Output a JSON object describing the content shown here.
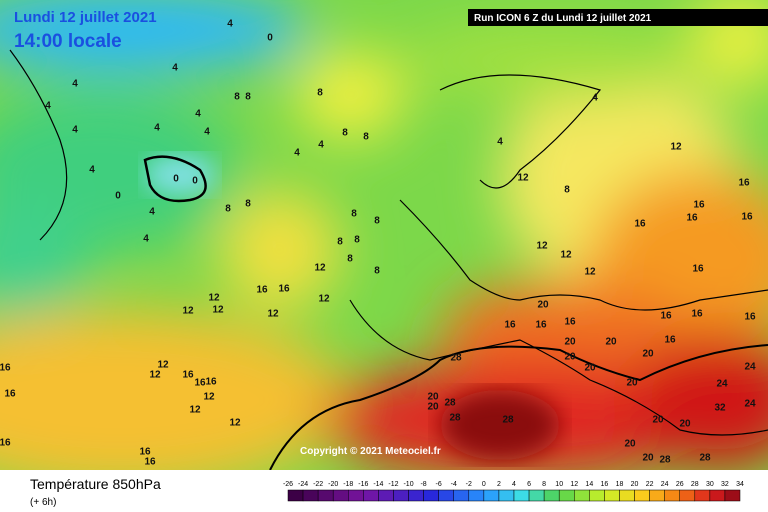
{
  "header": {
    "date": "Lundi 12 juillet 2021",
    "time": "14:00 locale",
    "run": "Run ICON 6 Z du Lundi 12 juillet 2021"
  },
  "copyright": "Copyright © 2021 Meteociel.fr",
  "footer": {
    "title": "Température 850hPa",
    "lead": "(+ 6h)"
  },
  "color_scale": [
    -26,
    -24,
    -22,
    -20,
    -18,
    -16,
    -14,
    -12,
    -10,
    -8,
    -6,
    -4,
    -2,
    0,
    2,
    4,
    6,
    8,
    10,
    12,
    14,
    16,
    18,
    20,
    22,
    24,
    26,
    28,
    30,
    32,
    34
  ],
  "contour_labels": [
    4,
    0,
    4,
    4,
    8,
    8,
    8,
    4,
    4,
    4,
    4,
    4,
    8,
    8,
    4,
    4,
    4,
    4,
    0,
    0,
    0,
    4,
    4,
    8,
    8,
    4,
    8,
    8,
    8,
    8,
    8,
    8,
    12,
    12,
    8,
    16,
    16,
    16,
    16,
    16,
    12,
    12,
    12,
    16,
    12,
    16,
    16,
    12,
    12,
    12,
    12,
    12,
    20,
    16,
    16,
    16,
    20,
    20,
    16,
    16,
    16,
    16,
    20,
    20,
    24,
    24,
    20,
    20,
    12,
    12,
    16,
    16,
    16,
    12,
    12,
    28,
    20,
    20,
    28,
    28,
    28,
    16,
    16,
    16,
    12,
    16,
    16,
    20,
    20,
    32,
    24,
    20,
    28,
    20,
    28
  ]
}
